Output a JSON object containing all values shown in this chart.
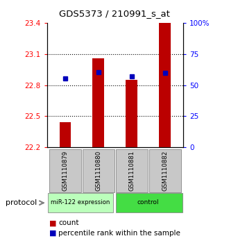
{
  "title": "GDS5373 / 210991_s_at",
  "samples": [
    "GSM1110879",
    "GSM1110880",
    "GSM1110881",
    "GSM1110882"
  ],
  "bar_bottom": 22.2,
  "bar_tops": [
    22.44,
    23.06,
    22.85,
    23.4
  ],
  "percentile_values": [
    22.865,
    22.925,
    22.885,
    22.92
  ],
  "ylim_left": [
    22.2,
    23.4
  ],
  "ylim_right": [
    0,
    100
  ],
  "yticks_left": [
    22.2,
    22.5,
    22.8,
    23.1,
    23.4
  ],
  "yticks_left_labels": [
    "22.2",
    "22.5",
    "22.8",
    "23.1",
    "23.4"
  ],
  "yticks_right": [
    0,
    25,
    50,
    75,
    100
  ],
  "yticks_right_labels": [
    "0",
    "25",
    "50",
    "75",
    "100%"
  ],
  "bar_color": "#bb0000",
  "dot_color": "#0000bb",
  "group1_label": "miR-122 expression",
  "group2_label": "control",
  "group1_color": "#bbffbb",
  "group2_color": "#44dd44",
  "protocol_label": "protocol",
  "sample_box_color": "#c8c8c8",
  "bar_width": 0.35,
  "legend_count_label": "count",
  "legend_percentile_label": "percentile rank within the sample"
}
